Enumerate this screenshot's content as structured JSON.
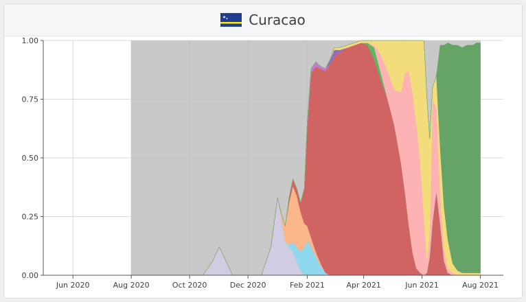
{
  "header": {
    "title": "Curacao",
    "flag_icon": "curacao-flag-icon"
  },
  "colors": {
    "shade": "#c9c9c9",
    "grid": "#dcdcdc",
    "axis": "#555555"
  },
  "chart_data": {
    "type": "area",
    "stacked": true,
    "normalized": true,
    "title": "Curacao",
    "xlabel": "",
    "ylabel": "",
    "xlim": [
      "2020-05-01",
      "2021-08-25"
    ],
    "ylim": [
      0,
      1
    ],
    "x_ticks": [
      "Jun 2020",
      "Aug 2020",
      "Oct 2020",
      "Dec 2020",
      "Feb 2021",
      "Apr 2021",
      "Jun 2021",
      "Aug 2021"
    ],
    "y_ticks": [
      "0.00",
      "0.25",
      "0.50",
      "0.75",
      "1.00"
    ],
    "grid": true,
    "legend": "none",
    "shaded_region": [
      "2020-08-01",
      "2021-08-01"
    ],
    "x": [
      "2020-10-15",
      "2020-10-25",
      "2020-11-01",
      "2020-11-08",
      "2020-11-15",
      "2020-11-22",
      "2020-11-29",
      "2020-12-05",
      "2020-12-15",
      "2020-12-25",
      "2021-01-01",
      "2021-01-05",
      "2021-01-09",
      "2021-01-13",
      "2021-01-17",
      "2021-01-21",
      "2021-01-25",
      "2021-01-29",
      "2021-02-01",
      "2021-02-05",
      "2021-02-10",
      "2021-02-15",
      "2021-02-20",
      "2021-02-25",
      "2021-03-01",
      "2021-03-07",
      "2021-03-15",
      "2021-03-22",
      "2021-03-29",
      "2021-04-05",
      "2021-04-12",
      "2021-04-19",
      "2021-04-26",
      "2021-05-03",
      "2021-05-10",
      "2021-05-14",
      "2021-05-18",
      "2021-05-22",
      "2021-05-26",
      "2021-05-30",
      "2021-06-03",
      "2021-06-06",
      "2021-06-09",
      "2021-06-12",
      "2021-06-16",
      "2021-06-20",
      "2021-06-24",
      "2021-06-28",
      "2021-07-03",
      "2021-07-08",
      "2021-07-13",
      "2021-07-18",
      "2021-07-24",
      "2021-07-28",
      "2021-08-01"
    ],
    "series": [
      {
        "color": "#cfcce3",
        "values": [
          0,
          0.06,
          0.12,
          0.06,
          0,
          0,
          0,
          0,
          0,
          0.12,
          0.33,
          0.24,
          0.14,
          0.12,
          0.1,
          0.06,
          0.02,
          0,
          0,
          0,
          0,
          0,
          0,
          0,
          0,
          0,
          0,
          0,
          0,
          0,
          0,
          0,
          0,
          0,
          0,
          0,
          0,
          0,
          0,
          0,
          0,
          0,
          0,
          0,
          0,
          0,
          0,
          0,
          0,
          0,
          0,
          0,
          0,
          0,
          0
        ]
      },
      {
        "color": "#8fd8ee",
        "values": [
          0,
          0,
          0,
          0,
          0,
          0,
          0,
          0,
          0,
          0,
          0,
          0,
          0,
          0.01,
          0.04,
          0.06,
          0.08,
          0.12,
          0.15,
          0.12,
          0.08,
          0.04,
          0.01,
          0,
          0,
          0,
          0,
          0,
          0,
          0,
          0,
          0,
          0,
          0,
          0,
          0,
          0,
          0,
          0,
          0,
          0,
          0,
          0,
          0,
          0,
          0,
          0,
          0,
          0,
          0,
          0,
          0,
          0,
          0,
          0
        ]
      },
      {
        "color": "#fbb789",
        "values": [
          0,
          0,
          0,
          0,
          0,
          0,
          0,
          0,
          0,
          0,
          0,
          0.02,
          0.07,
          0.18,
          0.24,
          0.22,
          0.17,
          0.1,
          0.06,
          0.04,
          0.02,
          0.01,
          0,
          0,
          0,
          0,
          0,
          0,
          0,
          0,
          0,
          0,
          0,
          0,
          0,
          0,
          0,
          0,
          0,
          0,
          0,
          0,
          0,
          0,
          0,
          0,
          0,
          0,
          0,
          0,
          0,
          0,
          0,
          0,
          0
        ]
      },
      {
        "color": "#d06463",
        "values": [
          0,
          0,
          0,
          0,
          0,
          0,
          0,
          0,
          0,
          0,
          0,
          0,
          0,
          0.02,
          0.03,
          0.03,
          0.04,
          0.15,
          0.42,
          0.7,
          0.79,
          0.83,
          0.86,
          0.9,
          0.93,
          0.95,
          0.97,
          0.98,
          0.99,
          0.98,
          0.92,
          0.83,
          0.75,
          0.64,
          0.48,
          0.36,
          0.22,
          0.1,
          0.03,
          0.01,
          0,
          0.01,
          0.08,
          0.23,
          0.36,
          0.22,
          0.06,
          0.01,
          0,
          0,
          0,
          0,
          0,
          0,
          0
        ]
      },
      {
        "color": "#c27cd6",
        "values": [
          0,
          0,
          0,
          0,
          0,
          0,
          0,
          0,
          0,
          0,
          0,
          0,
          0,
          0,
          0,
          0,
          0,
          0,
          0.02,
          0.02,
          0.02,
          0.01,
          0.01,
          0,
          0,
          0,
          0,
          0,
          0,
          0,
          0,
          0,
          0,
          0,
          0,
          0,
          0,
          0,
          0,
          0,
          0,
          0,
          0,
          0,
          0,
          0,
          0,
          0,
          0,
          0,
          0,
          0,
          0,
          0,
          0
        ]
      },
      {
        "color": "#8e6fbf",
        "values": [
          0,
          0,
          0,
          0,
          0,
          0,
          0,
          0,
          0,
          0,
          0,
          0,
          0,
          0,
          0,
          0,
          0,
          0,
          0,
          0,
          0,
          0,
          0,
          0.02,
          0.03,
          0.01,
          0,
          0,
          0,
          0,
          0,
          0,
          0,
          0,
          0,
          0,
          0,
          0,
          0,
          0,
          0,
          0,
          0,
          0,
          0,
          0,
          0,
          0,
          0,
          0,
          0,
          0,
          0,
          0,
          0
        ]
      },
      {
        "color": "#5cb85c",
        "values": [
          0,
          0,
          0,
          0,
          0,
          0,
          0,
          0,
          0,
          0,
          0,
          0,
          0,
          0,
          0,
          0,
          0,
          0,
          0,
          0,
          0,
          0,
          0,
          0,
          0,
          0,
          0,
          0,
          0,
          0.01,
          0.05,
          0.03,
          0,
          0,
          0,
          0,
          0,
          0,
          0,
          0,
          0,
          0,
          0,
          0,
          0,
          0,
          0,
          0,
          0,
          0,
          0,
          0,
          0,
          0,
          0
        ]
      },
      {
        "color": "#fdb3b3",
        "values": [
          0,
          0,
          0,
          0,
          0,
          0,
          0,
          0,
          0,
          0,
          0,
          0,
          0,
          0,
          0,
          0,
          0,
          0,
          0,
          0,
          0,
          0,
          0,
          0,
          0,
          0,
          0,
          0,
          0,
          0,
          0.01,
          0.08,
          0.12,
          0.15,
          0.3,
          0.5,
          0.65,
          0.68,
          0.62,
          0.48,
          0.25,
          0.05,
          0.1,
          0.52,
          0.35,
          0.12,
          0.05,
          0.02,
          0.01,
          0,
          0,
          0,
          0,
          0,
          0
        ]
      },
      {
        "color": "#f3dc7b",
        "values": [
          0,
          0,
          0,
          0,
          0,
          0,
          0,
          0,
          0,
          0,
          0,
          0,
          0,
          0,
          0,
          0,
          0,
          0,
          0,
          0,
          0,
          0,
          0,
          0,
          0.01,
          0.01,
          0.01,
          0.01,
          0.01,
          0.01,
          0.02,
          0.06,
          0.13,
          0.21,
          0.22,
          0.14,
          0.13,
          0.22,
          0.35,
          0.51,
          0.75,
          0.7,
          0.4,
          0.05,
          0.14,
          0.2,
          0.18,
          0.12,
          0.04,
          0.02,
          0.01,
          0.01,
          0.01,
          0.01,
          0.01
        ]
      },
      {
        "color": "#66a366",
        "values": [
          0,
          0,
          0,
          0,
          0,
          0,
          0,
          0,
          0,
          0,
          0,
          0,
          0,
          0,
          0,
          0,
          0,
          0,
          0,
          0,
          0,
          0,
          0,
          0,
          0,
          0,
          0,
          0,
          0,
          0,
          0,
          0,
          0,
          0,
          0,
          0,
          0,
          0,
          0,
          0,
          0,
          0,
          0,
          0,
          0,
          0.44,
          0.69,
          0.84,
          0.93,
          0.96,
          0.96,
          0.97,
          0.97,
          0.98,
          0.98
        ]
      }
    ]
  }
}
